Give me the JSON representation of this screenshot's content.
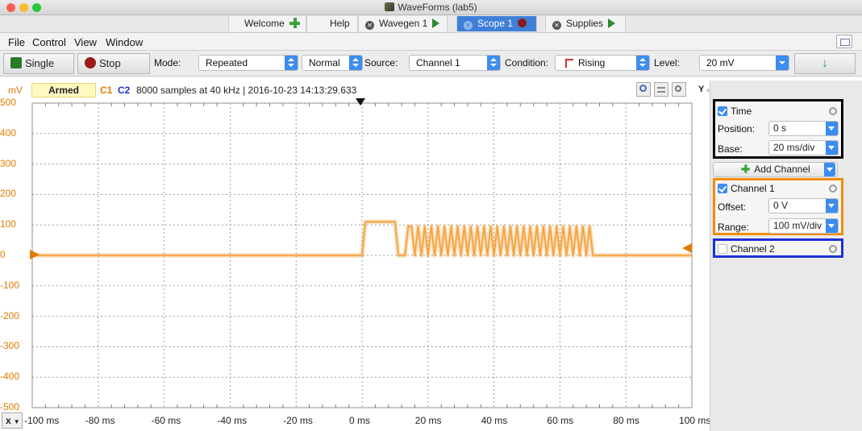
{
  "window": {
    "title": "WaveForms  (lab5)"
  },
  "tabs": [
    {
      "label": "Welcome"
    },
    {
      "label": "Help"
    },
    {
      "label": "Wavegen 1"
    },
    {
      "label": "Scope 1"
    },
    {
      "label": "Supplies"
    }
  ],
  "menu": {
    "items": [
      "File",
      "Control",
      "View",
      "Window"
    ]
  },
  "toolbar": {
    "single_label": "Single",
    "stop_label": "Stop",
    "mode_label": "Mode:",
    "mode_value": "Repeated",
    "normal_value": "Normal",
    "source_label": "Source:",
    "source_value": "Channel 1",
    "condition_label": "Condition:",
    "condition_value": "Rising",
    "level_label": "Level:",
    "level_value": "20 mV"
  },
  "status": {
    "unit": "mV",
    "state": "Armed",
    "c1": "C1",
    "c2": "C2",
    "info": "8000 samples at 40 kHz | 2016-10-23 14:13:29.633",
    "y_label": "Y"
  },
  "chart_data": {
    "type": "line",
    "y_tick_labels": [
      "500",
      "400",
      "300",
      "200",
      "100",
      "0",
      "-100",
      "-200",
      "-300",
      "-400",
      "-500"
    ],
    "x_tick_labels": [
      "-100 ms",
      "-80 ms",
      "-60 ms",
      "-40 ms",
      "-20 ms",
      "0 ms",
      "20 ms",
      "40 ms",
      "60 ms",
      "80 ms",
      "100 ms"
    ],
    "ylim": [
      -500,
      500
    ],
    "xlim": [
      -100,
      100
    ],
    "grid": true,
    "series_color": "#f4a341",
    "trace": [
      [
        -100,
        0
      ],
      [
        0,
        0
      ],
      [
        1,
        110
      ],
      [
        10,
        110
      ],
      [
        11,
        0
      ],
      [
        13,
        0
      ],
      [
        14,
        95
      ],
      [
        15,
        95
      ],
      [
        16,
        0
      ],
      [
        17,
        95
      ],
      [
        18,
        0
      ],
      [
        19,
        95
      ],
      [
        20,
        0
      ],
      [
        21,
        95
      ],
      [
        22,
        0
      ],
      [
        23,
        95
      ],
      [
        24,
        0
      ],
      [
        25,
        95
      ],
      [
        26,
        0
      ],
      [
        27,
        95
      ],
      [
        28,
        0
      ],
      [
        29,
        95
      ],
      [
        30,
        0
      ],
      [
        31,
        95
      ],
      [
        32,
        0
      ],
      [
        33,
        95
      ],
      [
        34,
        0
      ],
      [
        35,
        95
      ],
      [
        36,
        0
      ],
      [
        37,
        95
      ],
      [
        38,
        0
      ],
      [
        39,
        95
      ],
      [
        40,
        0
      ],
      [
        41,
        95
      ],
      [
        42,
        0
      ],
      [
        43,
        95
      ],
      [
        44,
        0
      ],
      [
        45,
        95
      ],
      [
        46,
        0
      ],
      [
        47,
        95
      ],
      [
        48,
        0
      ],
      [
        49,
        95
      ],
      [
        50,
        0
      ],
      [
        51,
        95
      ],
      [
        52,
        0
      ],
      [
        53,
        95
      ],
      [
        54,
        0
      ],
      [
        55,
        95
      ],
      [
        56,
        0
      ],
      [
        57,
        95
      ],
      [
        58,
        0
      ],
      [
        59,
        95
      ],
      [
        60,
        0
      ],
      [
        61,
        95
      ],
      [
        62,
        0
      ],
      [
        63,
        95
      ],
      [
        64,
        0
      ],
      [
        65,
        95
      ],
      [
        66,
        0
      ],
      [
        67,
        95
      ],
      [
        68,
        0
      ],
      [
        69,
        95
      ],
      [
        70,
        0
      ],
      [
        72,
        0
      ],
      [
        100,
        0
      ]
    ]
  },
  "x_axis_btn": "x",
  "panel": {
    "time": {
      "title": "Time",
      "position_label": "Position:",
      "position_value": "0 s",
      "base_label": "Base:",
      "base_value": "20 ms/div"
    },
    "add_channel": "Add Channel",
    "channel1": {
      "title": "Channel 1",
      "offset_label": "Offset:",
      "offset_value": "0 V",
      "range_label": "Range:",
      "range_value": "100 mV/div"
    },
    "channel2": {
      "title": "Channel 2"
    }
  },
  "colors": {
    "accent": "#3d8cf0",
    "channel1": "#f39a2b",
    "time_box": "#000000",
    "ch1_box": "#f28c00",
    "ch2_box": "#1f2fd6"
  }
}
